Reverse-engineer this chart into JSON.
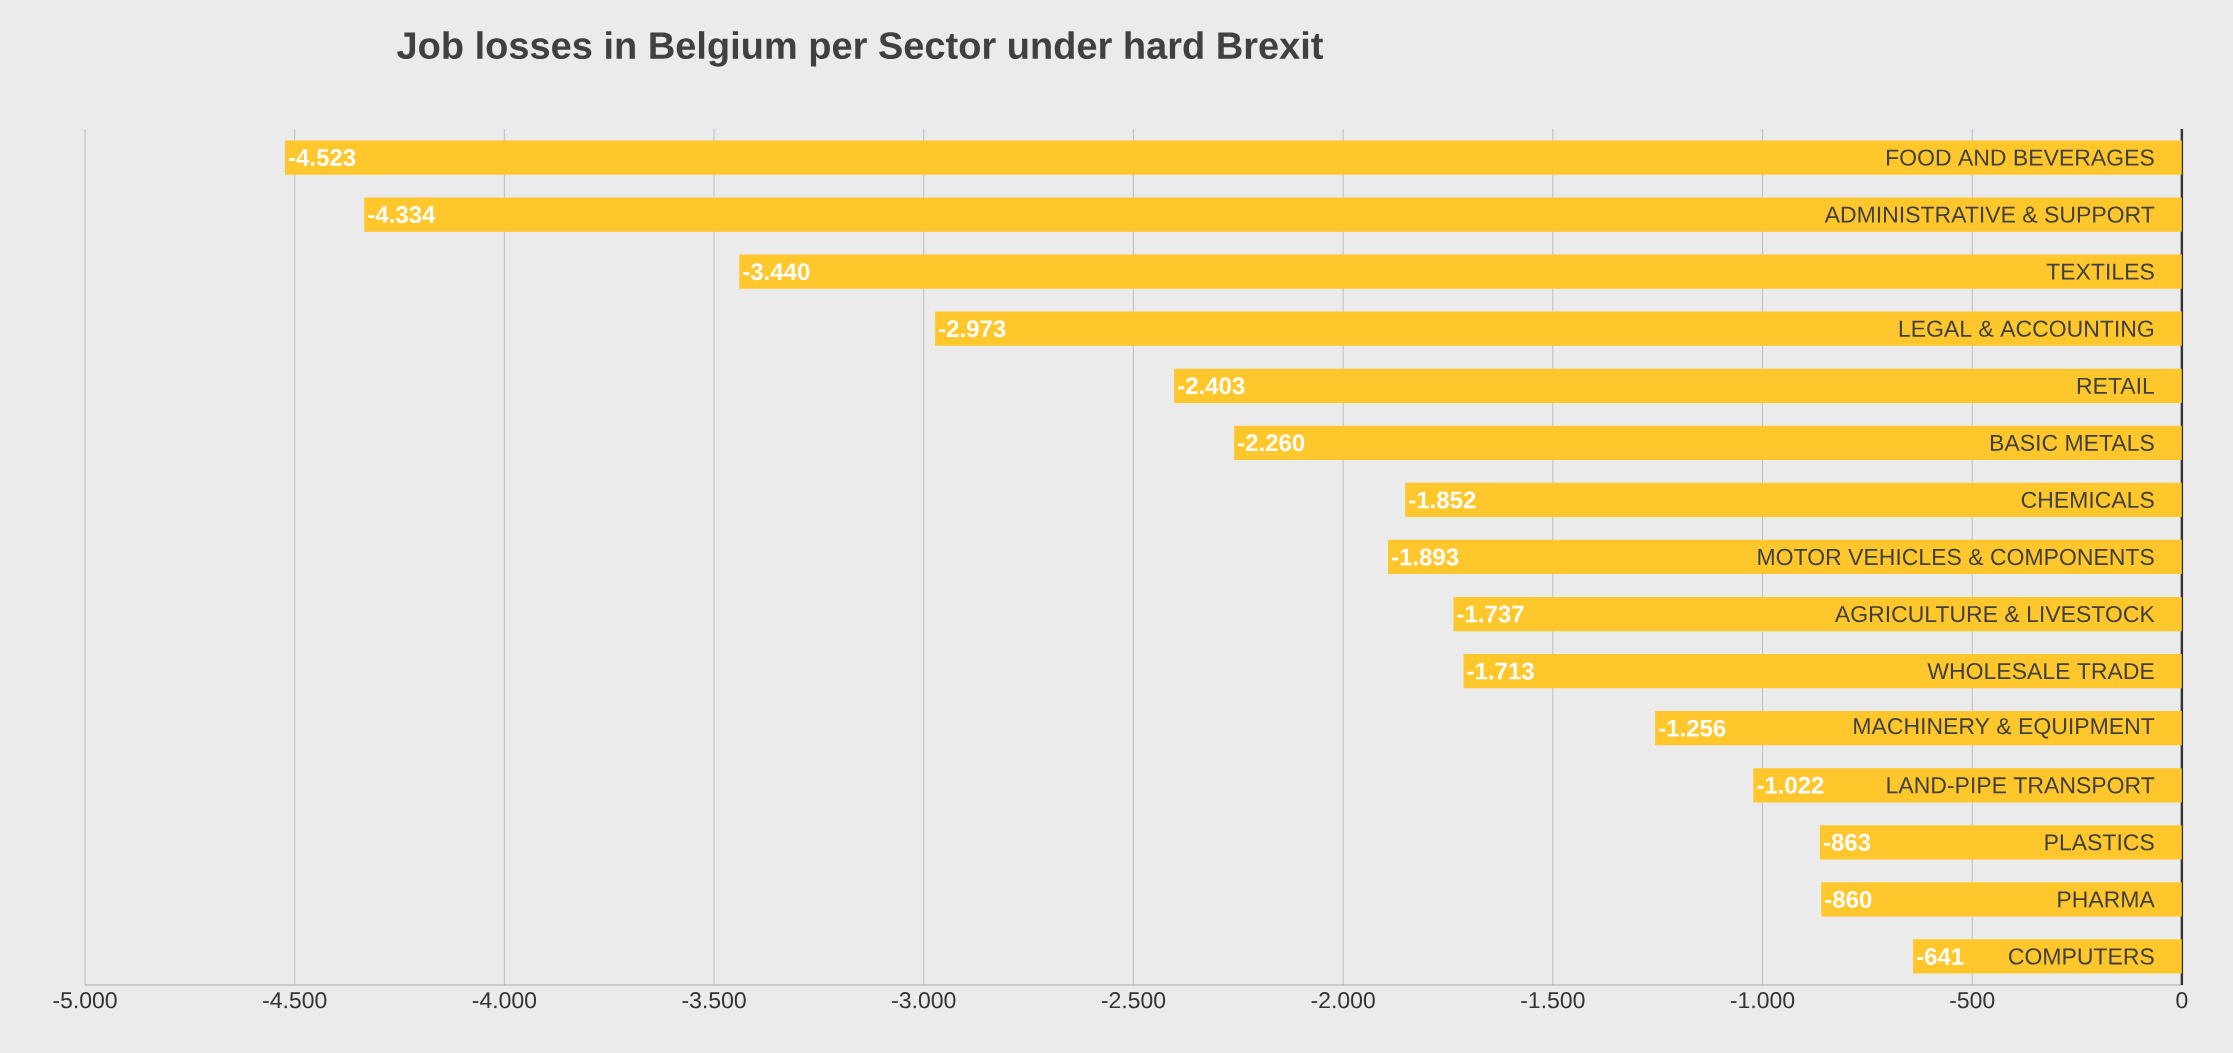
{
  "chart_data": {
    "type": "bar",
    "orientation": "horizontal",
    "title": "Job losses in Belgium per Sector under hard Brexit",
    "categories": [
      "FOOD AND BEVERAGES",
      "ADMINISTRATIVE & SUPPORT",
      "TEXTILES",
      "LEGAL & ACCOUNTING",
      "RETAIL",
      "BASIC METALS",
      "CHEMICALS",
      "MOTOR VEHICLES & COMPONENTS",
      "AGRICULTURE & LIVESTOCK",
      "WHOLESALE TRADE",
      "MACHINERY & EQUIPMENT",
      "LAND-PIPE TRANSPORT",
      "PLASTICS",
      "PHARMA",
      "COMPUTERS"
    ],
    "values": [
      -4523,
      -4334,
      -3440,
      -2973,
      -2403,
      -2260,
      -1852,
      -1893,
      -1737,
      -1713,
      -1256,
      -1022,
      -863,
      -860,
      -641
    ],
    "value_labels": [
      "-4.523",
      "-4.334",
      "-3.440",
      "-2.973",
      "-2.403",
      "-2.260",
      "-1.852",
      "-1.893",
      "-1.737",
      "-1.713",
      "-1.256",
      "-1.022",
      "-863",
      "-860",
      "-641"
    ],
    "color": "#ffc72c",
    "xlim": [
      -5000,
      0
    ],
    "xticks": [
      {
        "value": -5000,
        "label": "-5.000"
      },
      {
        "value": -4500,
        "label": "-4.500"
      },
      {
        "value": -4000,
        "label": "-4.000"
      },
      {
        "value": -3500,
        "label": "-3.500"
      },
      {
        "value": -3000,
        "label": "-3.000"
      },
      {
        "value": -2500,
        "label": "-2.500"
      },
      {
        "value": -2000,
        "label": "-2.000"
      },
      {
        "value": -1500,
        "label": "-1.500"
      },
      {
        "value": -1000,
        "label": "-1.000"
      },
      {
        "value": -500,
        "label": "-500"
      },
      0
    ],
    "grid": "x"
  }
}
